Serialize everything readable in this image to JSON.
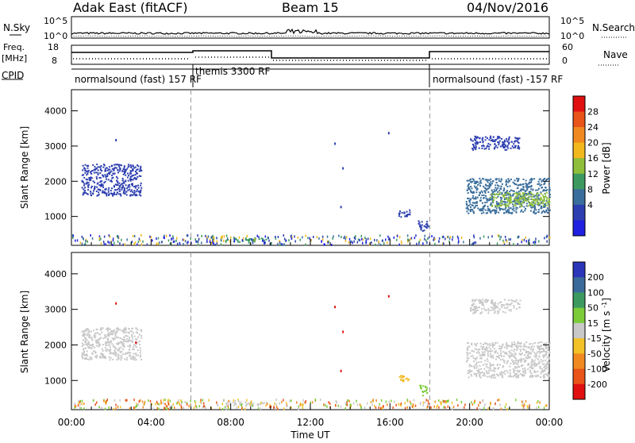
{
  "header": {
    "radar": "Adak East (fitACF)",
    "beam": "Beam 15",
    "date": "04/Nov/2016"
  },
  "top_panels": {
    "nsky_label": "N.Sky",
    "nsky_ticks": [
      "10^5",
      "10^0"
    ],
    "nsearch_label": "N.Search",
    "nsearch_ticks": [
      "10^5",
      "10^0"
    ],
    "freq_label_1": "Freq.",
    "freq_label_2": "[MHz]",
    "freq_ticks": [
      "18",
      "8"
    ],
    "nave_label": "Nave",
    "nave_ticks": [
      "60",
      "0"
    ],
    "cpid_label": "CPID",
    "cpid_segments": [
      {
        "label": "normalsound (fast) 157 RF",
        "start_h": 0
      },
      {
        "label": "themis 3300 RF",
        "start_h": 6
      },
      {
        "label": "normalsound (fast) -157 RF",
        "start_h": 18
      }
    ]
  },
  "chart_data": [
    {
      "type": "heatmap",
      "name": "power",
      "ylabel": "Slant Range [km]",
      "ylim": [
        180,
        4600
      ],
      "xlim_hours": [
        0,
        24
      ],
      "yticks": [
        1000,
        2000,
        3000,
        4000
      ],
      "colorbar_label": "Power [dB]",
      "colorbar_ticks": [
        "28",
        "24",
        "20",
        "16",
        "12",
        "8",
        "4"
      ],
      "colorbar_colors": [
        "#e01010",
        "#e8541a",
        "#f08a20",
        "#f2b81e",
        "#8fbf3a",
        "#3c9a60",
        "#3a6e9c",
        "#2d3fb0",
        "#2020e0"
      ],
      "regions": [
        {
          "t0": 0.5,
          "t1": 3.5,
          "r0": 1600,
          "r1": 2500,
          "color": "#2d3fb0"
        },
        {
          "t0": 7.7,
          "t1": 9.8,
          "r0": 300,
          "r1": 420,
          "color": "#3c9a60"
        },
        {
          "t0": 16.4,
          "t1": 17.0,
          "r0": 1000,
          "r1": 1200,
          "color": "#2d3fb0"
        },
        {
          "t0": 17.4,
          "t1": 17.9,
          "r0": 600,
          "r1": 900,
          "color": "#2d3fb0"
        },
        {
          "t0": 19.8,
          "t1": 24.0,
          "r0": 1100,
          "r1": 2100,
          "color": "#3a6e9c"
        },
        {
          "t0": 21.0,
          "t1": 24.0,
          "r0": 1300,
          "r1": 1700,
          "color": "#8fbf3a"
        },
        {
          "t0": 20.0,
          "t1": 22.5,
          "r0": 2900,
          "r1": 3300,
          "color": "#2d3fb0"
        }
      ]
    },
    {
      "type": "heatmap",
      "name": "velocity",
      "ylabel": "Slant Range [km]",
      "ylim": [
        180,
        4600
      ],
      "xlim_hours": [
        0,
        24
      ],
      "yticks": [
        1000,
        2000,
        3000,
        4000
      ],
      "xticks": [
        "00:00",
        "04:00",
        "08:00",
        "12:00",
        "16:00",
        "20:00",
        "00:00"
      ],
      "xlabel": "Time UT",
      "colorbar_label": "Velocity [m s^-1]",
      "colorbar_ticks": [
        "200",
        "100",
        "50",
        "15",
        "-15",
        "-50",
        "-100",
        "-200"
      ],
      "colorbar_colors": [
        "#2a35b8",
        "#3a6a9a",
        "#3c9a60",
        "#7ccc3a",
        "#c8c8c8",
        "#f2c228",
        "#f08a20",
        "#e8541a",
        "#e01010"
      ],
      "regions": [
        {
          "t0": 0.5,
          "t1": 3.5,
          "r0": 1600,
          "r1": 2500,
          "color": "#c8c8c8"
        },
        {
          "t0": 7.7,
          "t1": 9.8,
          "r0": 300,
          "r1": 420,
          "color": "#c8c8c8"
        },
        {
          "t0": 16.4,
          "t1": 17.0,
          "r0": 1000,
          "r1": 1200,
          "color": "#f2b81e"
        },
        {
          "t0": 17.4,
          "t1": 17.9,
          "r0": 600,
          "r1": 900,
          "color": "#7ccc3a"
        },
        {
          "t0": 19.8,
          "t1": 24.0,
          "r0": 1100,
          "r1": 2100,
          "color": "#c8c8c8"
        },
        {
          "t0": 20.0,
          "t1": 22.5,
          "r0": 2900,
          "r1": 3300,
          "color": "#c8c8c8"
        }
      ]
    }
  ]
}
